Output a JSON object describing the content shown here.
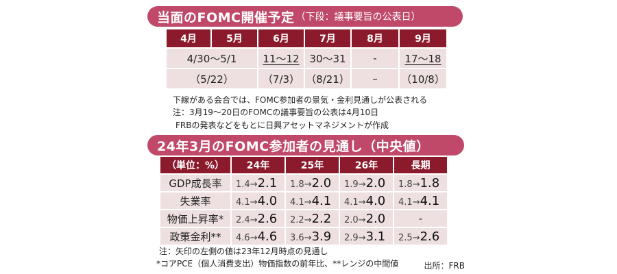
{
  "banner1": {
    "main": "当面のFOMC開催予定",
    "sub": "（下段：議事要旨の公表日）"
  },
  "fomc": {
    "months": [
      "4月",
      "5月",
      "6月",
      "7月",
      "8月",
      "9月"
    ],
    "meeting_4_5": "4/30〜5/1",
    "meeting_6": "11〜12",
    "meeting_7": "30〜31",
    "meeting_8": "-",
    "meeting_9": "17〜18",
    "minutes_4_5": "（5/22）",
    "minutes_6": "（7/3）",
    "minutes_7": "（8/21）",
    "minutes_8": "–",
    "minutes_9": "（10/8）"
  },
  "notes1": [
    "下線がある会合では、FOMC参加者の景気・金利見通しが公表される",
    "注：3月19〜20日のFOMCの議事要旨の公表は4月10日",
    "FRBの発表などをもとに日興アセットマネジメントが作成"
  ],
  "banner2": {
    "main": "24年3月のFOMC参加者の見通し（中央値）"
  },
  "outlook": {
    "headers": [
      "（単位：%）",
      "24年",
      "25年",
      "26年",
      "長期"
    ],
    "arrow": "→",
    "rows": [
      {
        "label": "GDP成長率",
        "v24_prev": "1.4",
        "v24": "2.1",
        "v25_prev": "1.8",
        "v25": "2.0",
        "v26_prev": "1.9",
        "v26": "2.0",
        "lt_prev": "1.8",
        "lt": "1.8"
      },
      {
        "label": "失業率",
        "v24_prev": "4.1",
        "v24": "4.0",
        "v25_prev": "4.1",
        "v25": "4.1",
        "v26_prev": "4.1",
        "v26": "4.0",
        "lt_prev": "4.1",
        "lt": "4.1"
      },
      {
        "label": "物価上昇率*",
        "v24_prev": "2.4",
        "v24": "2.6",
        "v25_prev": "2.2",
        "v25": "2.2",
        "v26_prev": "2.0",
        "v26": "2.0",
        "lt": "-"
      },
      {
        "label": "政策金利**",
        "v24_prev": "4.6",
        "v24": "4.6",
        "v25_prev": "3.6",
        "v25": "3.9",
        "v26_prev": "2.9",
        "v26": "3.1",
        "lt_prev": "2.5",
        "lt": "2.6"
      }
    ]
  },
  "notes2": [
    "注：矢印の左側の値は23年12月時点の見通し",
    "*コアPCE（個人消費支出）物価指数の前年比、**レンジの中間値"
  ],
  "source": "出所：FRB",
  "colors": {
    "banner": "#c0496a",
    "header": "#8b1a2c",
    "cell": "#eee0e0"
  }
}
